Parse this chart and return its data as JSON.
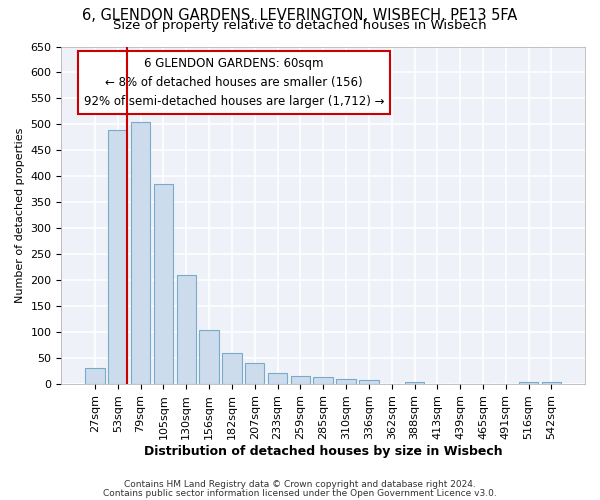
{
  "title1": "6, GLENDON GARDENS, LEVERINGTON, WISBECH, PE13 5FA",
  "title2": "Size of property relative to detached houses in Wisbech",
  "xlabel": "Distribution of detached houses by size in Wisbech",
  "ylabel": "Number of detached properties",
  "categories": [
    "27sqm",
    "53sqm",
    "79sqm",
    "105sqm",
    "130sqm",
    "156sqm",
    "182sqm",
    "207sqm",
    "233sqm",
    "259sqm",
    "285sqm",
    "310sqm",
    "336sqm",
    "362sqm",
    "388sqm",
    "413sqm",
    "439sqm",
    "465sqm",
    "491sqm",
    "516sqm",
    "542sqm"
  ],
  "values": [
    31,
    490,
    505,
    385,
    210,
    105,
    60,
    40,
    22,
    15,
    13,
    11,
    8,
    0,
    5,
    0,
    0,
    0,
    0,
    5,
    5
  ],
  "bar_color": "#ccdcec",
  "bar_edge_color": "#7aaac8",
  "vline_color": "#cc0000",
  "annotation_line1": "6 GLENDON GARDENS: 60sqm",
  "annotation_line2": "← 8% of detached houses are smaller (156)",
  "annotation_line3": "92% of semi-detached houses are larger (1,712) →",
  "annotation_box_edgecolor": "#cc0000",
  "ylim": [
    0,
    650
  ],
  "yticks": [
    0,
    50,
    100,
    150,
    200,
    250,
    300,
    350,
    400,
    450,
    500,
    550,
    600,
    650
  ],
  "background_color": "#eef2f8",
  "grid_color": "#ffffff",
  "footer1": "Contains HM Land Registry data © Crown copyright and database right 2024.",
  "footer2": "Contains public sector information licensed under the Open Government Licence v3.0.",
  "title1_fontsize": 10.5,
  "title2_fontsize": 9.5,
  "xlabel_fontsize": 9,
  "ylabel_fontsize": 8,
  "tick_fontsize": 8,
  "annotation_fontsize": 8.5,
  "footer_fontsize": 6.5
}
